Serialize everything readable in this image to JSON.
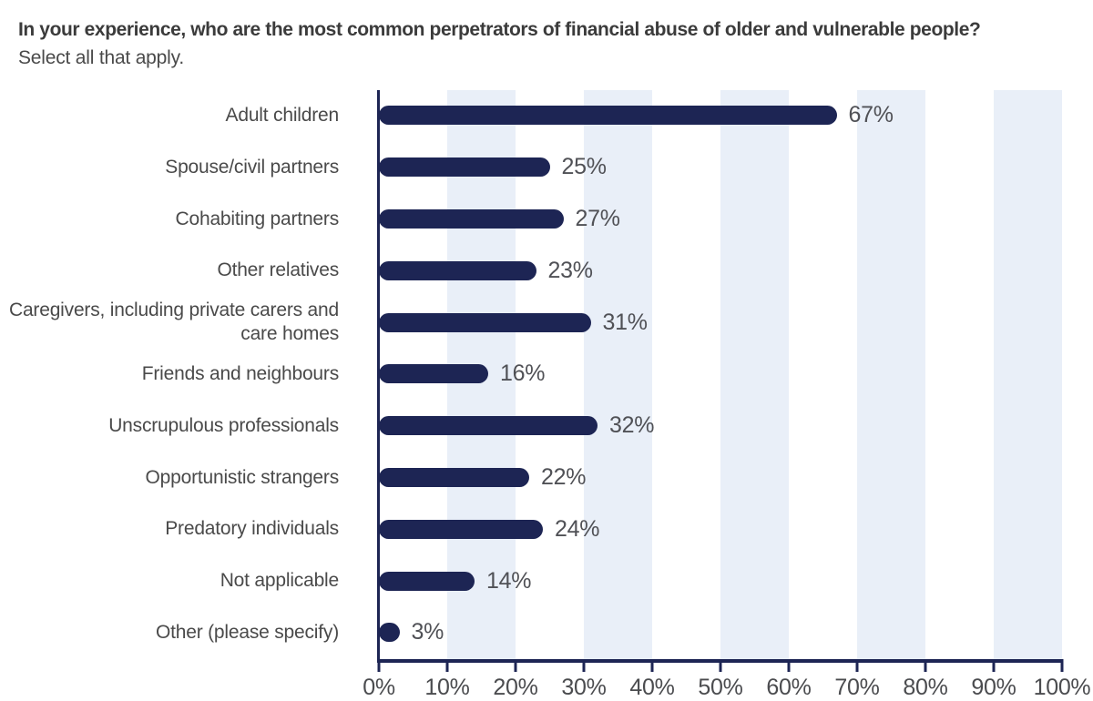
{
  "header": {
    "title": "In your experience, who are the most common perpetrators of financial abuse of older and vulnerable people?",
    "subtitle": "Select all that apply."
  },
  "chart_data": {
    "type": "bar",
    "orientation": "horizontal",
    "title": "",
    "xlabel": "",
    "ylabel": "",
    "categories": [
      "Adult children",
      "Spouse/civil partners",
      "Cohabiting partners",
      "Other relatives",
      "Caregivers, including private carers and care homes",
      "Friends and neighbours",
      "Unscrupulous professionals",
      "Opportunistic strangers",
      "Predatory individuals",
      "Not applicable",
      "Other (please specify)"
    ],
    "values": [
      67,
      25,
      27,
      23,
      31,
      16,
      32,
      22,
      24,
      14,
      3
    ],
    "value_labels": [
      "67%",
      "25%",
      "27%",
      "23%",
      "31%",
      "16%",
      "32%",
      "22%",
      "24%",
      "14%",
      "3%"
    ],
    "x_ticks": [
      "0%",
      "10%",
      "20%",
      "30%",
      "40%",
      "50%",
      "60%",
      "70%",
      "80%",
      "90%",
      "100%"
    ],
    "tick_values": [
      0,
      10,
      20,
      30,
      40,
      50,
      60,
      70,
      80,
      90,
      100
    ],
    "xlim": [
      0,
      100
    ],
    "legend": false,
    "grid": "alternating-vertical-bands",
    "shaded_band_starts": [
      10,
      30,
      50,
      70,
      90
    ],
    "shaded_band_width": 10,
    "colors": {
      "bar": "#1d2554",
      "axis": "#1d2554",
      "band": "#e9eff8",
      "title_text": "#3b3b3b",
      "category_text": "#4a4a4a",
      "value_text": "#505156",
      "tick_text": "#4b4c4f"
    }
  }
}
